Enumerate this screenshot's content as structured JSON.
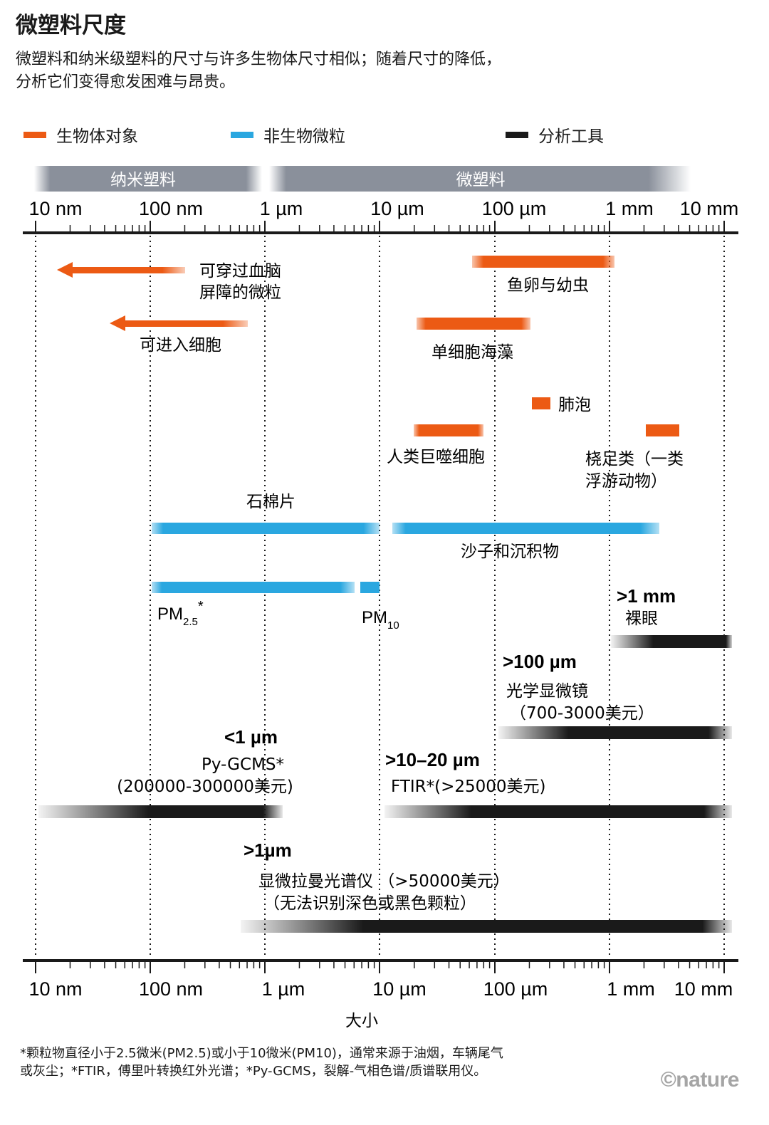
{
  "title": "微塑料尺度",
  "subtitle": "微塑料和纳米级塑料的尺寸与许多生物体尺寸相似；随着尺寸的降低，分析它们变得愈发困难与昂贵。",
  "legend": [
    {
      "label": "生物体对象",
      "color": "#ec5a14"
    },
    {
      "label": "非生物微粒",
      "color": "#2aa7e0"
    },
    {
      "label": "分析工具",
      "color": "#1a1a1a"
    }
  ],
  "ranges": [
    {
      "label": "纳米塑料",
      "from": "10 nm",
      "to": "1 µm"
    },
    {
      "label": "微塑料",
      "from": "1 µm",
      "to": "10 mm"
    }
  ],
  "axis": {
    "scale": "log",
    "ticks": [
      "10 nm",
      "100 nm",
      "1 µm",
      "10 µm",
      "100 µm",
      "1 mm",
      "10 mm"
    ],
    "xlabel": "大小"
  },
  "items": {
    "bbb": {
      "lines": [
        "可穿过血脑",
        "屏障的微粒"
      ],
      "color": "#ec5a14",
      "kind": "arrow"
    },
    "cell": {
      "lines": [
        "可进入细胞"
      ],
      "color": "#ec5a14",
      "kind": "arrow"
    },
    "fish": {
      "lines": [
        "鱼卵与幼虫"
      ],
      "color": "#ec5a14",
      "min": "60 µm",
      "max": "1 mm"
    },
    "algae": {
      "lines": [
        "单细胞海藻"
      ],
      "color": "#ec5a14",
      "min": "20 µm",
      "max": "200 µm"
    },
    "alveoli": {
      "lines": [
        "肺泡"
      ],
      "color": "#ec5a14",
      "min": "200 µm",
      "max": "300 µm"
    },
    "macro": {
      "lines": [
        "人类巨噬细胞"
      ],
      "color": "#ec5a14",
      "min": "20 µm",
      "max": "80 µm"
    },
    "copepod": {
      "lines": [
        "桡足类（一类",
        "浮游动物）"
      ],
      "color": "#ec5a14",
      "min": "2 mm",
      "max": "4.5 mm"
    },
    "asbestos": {
      "lines": [
        "石棉片"
      ],
      "color": "#2aa7e0",
      "min": "100 nm",
      "max": "10 µm"
    },
    "sand": {
      "lines": [
        "沙子和沉积物"
      ],
      "color": "#2aa7e0",
      "min": "12 µm",
      "max": "3 mm"
    },
    "pm25": {
      "label": "PM",
      "sub": "2.5",
      "sup": "*",
      "color": "#2aa7e0",
      "min": "100 nm",
      "max": "2.5 µm"
    },
    "pm10": {
      "label": "PM",
      "sub": "10",
      "color": "#2aa7e0",
      "min": "2.5 µm",
      "max": "10 µm"
    },
    "eye": {
      "head": ">1 mm",
      "lines": [
        "裸眼"
      ],
      "color": "#1a1a1a"
    },
    "optical": {
      "head": ">100 µm",
      "lines": [
        "光学显微镜",
        "（700-3000美元）"
      ],
      "color": "#1a1a1a"
    },
    "pygcms": {
      "head": "<1 µm",
      "lines": [
        "Py-GCMS*",
        "(200000-300000美元)"
      ],
      "color": "#1a1a1a"
    },
    "ftir": {
      "head": ">10–20 µm",
      "lines": [
        "FTIR*(>25000美元)"
      ],
      "color": "#1a1a1a"
    },
    "raman": {
      "head": ">1µm",
      "lines": [
        "显微拉曼光谱仪 （>50000美元）",
        "（无法识别深色或黑色颗粒）"
      ],
      "color": "#1a1a1a"
    }
  },
  "footnote": "*颗粒物直径小于2.5微米(PM2.5)或小于10微米(PM10)，通常来源于油烟，车辆尾气或灰尘；*FTIR，傅里叶转换红外光谱；*Py-GCMS，裂解-气相色谱/质谱联用仪。",
  "logo": "©nature"
}
